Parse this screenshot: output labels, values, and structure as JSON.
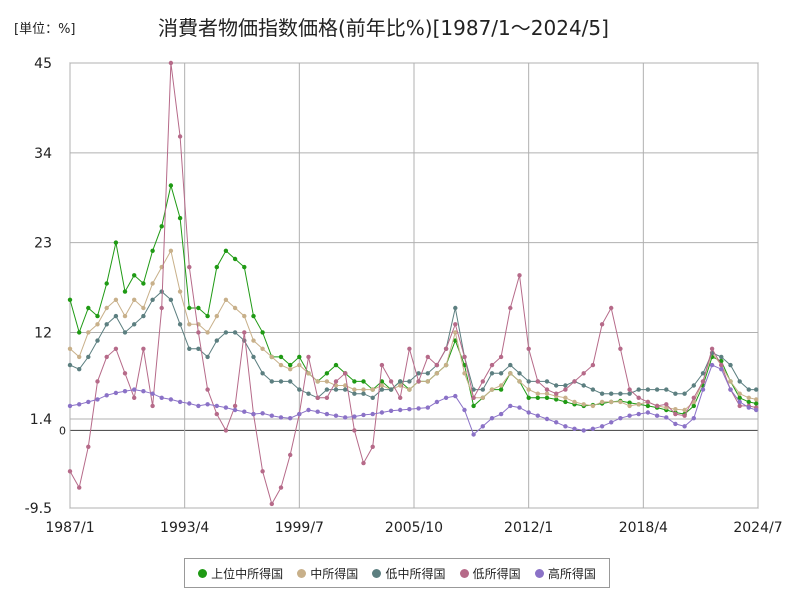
{
  "chart_data": {
    "type": "line",
    "title": "消費者物価指数価格(前年比%)[1987/1～2024/5]",
    "unit_label": "[単位：%]",
    "zero_label": "0",
    "xlabel": "",
    "ylabel": "",
    "xlim": [
      1987.0,
      2024.5
    ],
    "ylim": [
      -9.5,
      45
    ],
    "y_ticks": [
      {
        "value": 45,
        "label": "45"
      },
      {
        "value": 34,
        "label": "34"
      },
      {
        "value": 23,
        "label": "23"
      },
      {
        "value": 12,
        "label": "12"
      },
      {
        "value": 1.4,
        "label": "1.4"
      },
      {
        "value": -9.5,
        "label": "-9.5"
      }
    ],
    "x_ticks": [
      {
        "value": 1987.0,
        "label": "1987/1"
      },
      {
        "value": 1993.25,
        "label": "1993/4"
      },
      {
        "value": 1999.5,
        "label": "1999/7"
      },
      {
        "value": 2005.75,
        "label": "2005/10"
      },
      {
        "value": 2012.0,
        "label": "2012/1"
      },
      {
        "value": 2018.25,
        "label": "2018/4"
      },
      {
        "value": 2024.5,
        "label": "2024/7"
      }
    ],
    "grid": true,
    "legend_position": "bottom",
    "series": [
      {
        "name": "上位中所得国",
        "color": "#1f9a14",
        "x": [
          1987.0,
          1987.5,
          1988.0,
          1988.5,
          1989.0,
          1989.5,
          1990.0,
          1990.5,
          1991.0,
          1991.5,
          1992.0,
          1992.5,
          1993.0,
          1993.5,
          1994.0,
          1994.5,
          1995.0,
          1995.5,
          1996.0,
          1996.5,
          1997.0,
          1997.5,
          1998.0,
          1998.5,
          1999.0,
          1999.5,
          2000.0,
          2000.5,
          2001.0,
          2001.5,
          2002.0,
          2002.5,
          2003.0,
          2003.5,
          2004.0,
          2004.5,
          2005.0,
          2005.5,
          2006.0,
          2006.5,
          2007.0,
          2007.5,
          2008.0,
          2008.5,
          2009.0,
          2009.5,
          2010.0,
          2010.5,
          2011.0,
          2011.5,
          2012.0,
          2012.5,
          2013.0,
          2013.5,
          2014.0,
          2014.5,
          2015.0,
          2015.5,
          2016.0,
          2016.5,
          2017.0,
          2017.5,
          2018.0,
          2018.5,
          2019.0,
          2019.5,
          2020.0,
          2020.5,
          2021.0,
          2021.5,
          2022.0,
          2022.5,
          2023.0,
          2023.5,
          2024.0,
          2024.4
        ],
        "values": [
          16,
          12,
          15,
          14,
          18,
          23,
          17,
          19,
          18,
          22,
          25,
          30,
          26,
          15,
          15,
          14,
          20,
          22,
          21,
          20,
          14,
          12,
          9,
          9,
          8,
          9,
          7,
          6,
          7,
          8,
          7,
          6,
          6,
          5,
          6,
          5,
          6,
          5,
          6,
          6,
          7,
          8,
          11,
          8,
          3,
          4,
          5,
          5,
          7,
          6,
          4,
          4,
          4,
          3.8,
          3.5,
          3.2,
          3.0,
          3.1,
          3.3,
          3.5,
          3.6,
          3.4,
          3.2,
          3.0,
          2.8,
          2.5,
          2.2,
          2.0,
          3.0,
          5.5,
          9.0,
          8.5,
          6.0,
          4.0,
          3.5,
          3.3
        ]
      },
      {
        "name": "中所得国",
        "color": "#c8b08a",
        "x": [
          1987.0,
          1987.5,
          1988.0,
          1988.5,
          1989.0,
          1989.5,
          1990.0,
          1990.5,
          1991.0,
          1991.5,
          1992.0,
          1992.5,
          1993.0,
          1993.5,
          1994.0,
          1994.5,
          1995.0,
          1995.5,
          1996.0,
          1996.5,
          1997.0,
          1997.5,
          1998.0,
          1998.5,
          1999.0,
          1999.5,
          2000.0,
          2000.5,
          2001.0,
          2001.5,
          2002.0,
          2002.5,
          2003.0,
          2003.5,
          2004.0,
          2004.5,
          2005.0,
          2005.5,
          2006.0,
          2006.5,
          2007.0,
          2007.5,
          2008.0,
          2008.5,
          2009.0,
          2009.5,
          2010.0,
          2010.5,
          2011.0,
          2011.5,
          2012.0,
          2012.5,
          2013.0,
          2013.5,
          2014.0,
          2014.5,
          2015.0,
          2015.5,
          2016.0,
          2016.5,
          2017.0,
          2017.5,
          2018.0,
          2018.5,
          2019.0,
          2019.5,
          2020.0,
          2020.5,
          2021.0,
          2021.5,
          2022.0,
          2022.5,
          2023.0,
          2023.5,
          2024.0,
          2024.4
        ],
        "values": [
          10,
          9,
          12,
          13,
          15,
          16,
          14,
          16,
          15,
          18,
          20,
          22,
          17,
          13,
          13,
          12,
          14,
          16,
          15,
          14,
          11,
          10,
          9,
          8,
          7.5,
          8,
          7,
          6,
          6,
          5.5,
          5.5,
          5,
          5,
          5,
          5.5,
          5,
          5.5,
          5,
          6,
          6,
          7,
          8,
          12,
          7,
          4,
          4,
          5,
          5.5,
          7,
          6,
          5,
          4.5,
          4.5,
          4.2,
          4.0,
          3.5,
          3.2,
          3.0,
          3.5,
          3.5,
          3.5,
          3.0,
          3.2,
          3.5,
          3.0,
          2.8,
          2.6,
          2.5,
          3.5,
          6.0,
          9.5,
          8.0,
          6.0,
          4.5,
          4.0,
          3.8
        ]
      },
      {
        "name": "低中所得国",
        "color": "#5c7f80",
        "x": [
          1987.0,
          1987.5,
          1988.0,
          1988.5,
          1989.0,
          1989.5,
          1990.0,
          1990.5,
          1991.0,
          1991.5,
          1992.0,
          1992.5,
          1993.0,
          1993.5,
          1994.0,
          1994.5,
          1995.0,
          1995.5,
          1996.0,
          1996.5,
          1997.0,
          1997.5,
          1998.0,
          1998.5,
          1999.0,
          1999.5,
          2000.0,
          2000.5,
          2001.0,
          2001.5,
          2002.0,
          2002.5,
          2003.0,
          2003.5,
          2004.0,
          2004.5,
          2005.0,
          2005.5,
          2006.0,
          2006.5,
          2007.0,
          2007.5,
          2008.0,
          2008.5,
          2009.0,
          2009.5,
          2010.0,
          2010.5,
          2011.0,
          2011.5,
          2012.0,
          2012.5,
          2013.0,
          2013.5,
          2014.0,
          2014.5,
          2015.0,
          2015.5,
          2016.0,
          2016.5,
          2017.0,
          2017.5,
          2018.0,
          2018.5,
          2019.0,
          2019.5,
          2020.0,
          2020.5,
          2021.0,
          2021.5,
          2022.0,
          2022.5,
          2023.0,
          2023.5,
          2024.0,
          2024.4
        ],
        "values": [
          8,
          7.5,
          9,
          11,
          13,
          14,
          12,
          13,
          14,
          16,
          17,
          16,
          13,
          10,
          10,
          9,
          11,
          12,
          12,
          11,
          9,
          7,
          6,
          6,
          6,
          5,
          4.5,
          4,
          5,
          5,
          5,
          4.5,
          4.5,
          4,
          5,
          5,
          6,
          6,
          7,
          7,
          8,
          10,
          15,
          9,
          5,
          5,
          7,
          7,
          8,
          7,
          6,
          6,
          6,
          5.5,
          5.5,
          6,
          5.5,
          5,
          4.5,
          4.5,
          4.5,
          4.5,
          5,
          5,
          5,
          5,
          4.5,
          4.5,
          5.5,
          7,
          9.5,
          9,
          8,
          6,
          5,
          5
        ]
      },
      {
        "name": "低所得国",
        "color": "#b66a89",
        "x": [
          1987.0,
          1987.5,
          1988.0,
          1988.5,
          1989.0,
          1989.5,
          1990.0,
          1990.5,
          1991.0,
          1991.5,
          1992.0,
          1992.5,
          1993.0,
          1993.5,
          1994.0,
          1994.5,
          1995.0,
          1995.5,
          1996.0,
          1996.5,
          1997.0,
          1997.5,
          1998.0,
          1998.5,
          1999.0,
          1999.5,
          2000.0,
          2000.5,
          2001.0,
          2001.5,
          2002.0,
          2002.5,
          2003.0,
          2003.5,
          2004.0,
          2004.5,
          2005.0,
          2005.5,
          2006.0,
          2006.5,
          2007.0,
          2007.5,
          2008.0,
          2008.5,
          2009.0,
          2009.5,
          2010.0,
          2010.5,
          2011.0,
          2011.5,
          2012.0,
          2012.5,
          2013.0,
          2013.5,
          2014.0,
          2014.5,
          2015.0,
          2015.5,
          2016.0,
          2016.5,
          2017.0,
          2017.5,
          2018.0,
          2018.5,
          2019.0,
          2019.5,
          2020.0,
          2020.5,
          2021.0,
          2021.5,
          2022.0,
          2022.5,
          2023.0,
          2023.5,
          2024.0,
          2024.4
        ],
        "values": [
          -5,
          -7,
          -2,
          6,
          9,
          10,
          7,
          4,
          10,
          3,
          15,
          45,
          36,
          20,
          12,
          5,
          2,
          0,
          3,
          12,
          2,
          -5,
          -9,
          -7,
          -3,
          2,
          9,
          4,
          4,
          6,
          7,
          0,
          -4,
          -2,
          8,
          6,
          4,
          10,
          6,
          9,
          8,
          10,
          13,
          9,
          4,
          6,
          8,
          9,
          15,
          19,
          10,
          6,
          5,
          4.5,
          5,
          6,
          7,
          8,
          13,
          15,
          10,
          5,
          4,
          3.5,
          3,
          3.2,
          2.0,
          1.8,
          4,
          6,
          10,
          8,
          5,
          3,
          3,
          2.8
        ]
      },
      {
        "name": "高所得国",
        "color": "#8b72c7",
        "x": [
          1987.0,
          1987.5,
          1988.0,
          1988.5,
          1989.0,
          1989.5,
          1990.0,
          1990.5,
          1991.0,
          1991.5,
          1992.0,
          1992.5,
          1993.0,
          1993.5,
          1994.0,
          1994.5,
          1995.0,
          1995.5,
          1996.0,
          1996.5,
          1997.0,
          1997.5,
          1998.0,
          1998.5,
          1999.0,
          1999.5,
          2000.0,
          2000.5,
          2001.0,
          2001.5,
          2002.0,
          2002.5,
          2003.0,
          2003.5,
          2004.0,
          2004.5,
          2005.0,
          2005.5,
          2006.0,
          2006.5,
          2007.0,
          2007.5,
          2008.0,
          2008.5,
          2009.0,
          2009.5,
          2010.0,
          2010.5,
          2011.0,
          2011.5,
          2012.0,
          2012.5,
          2013.0,
          2013.5,
          2014.0,
          2014.5,
          2015.0,
          2015.5,
          2016.0,
          2016.5,
          2017.0,
          2017.5,
          2018.0,
          2018.5,
          2019.0,
          2019.5,
          2020.0,
          2020.5,
          2021.0,
          2021.5,
          2022.0,
          2022.5,
          2023.0,
          2023.5,
          2024.0,
          2024.4
        ],
        "values": [
          3,
          3.2,
          3.5,
          3.8,
          4.3,
          4.6,
          4.8,
          5.0,
          4.8,
          4.5,
          4.0,
          3.8,
          3.5,
          3.3,
          3.0,
          3.2,
          3.0,
          2.8,
          2.5,
          2.3,
          2.0,
          2.1,
          1.8,
          1.6,
          1.5,
          2.0,
          2.5,
          2.3,
          2.0,
          1.8,
          1.6,
          1.7,
          1.9,
          2.0,
          2.2,
          2.4,
          2.5,
          2.6,
          2.7,
          2.8,
          3.5,
          4.0,
          4.2,
          2.5,
          -0.5,
          0.5,
          1.5,
          2.0,
          3.0,
          2.8,
          2.2,
          1.8,
          1.4,
          1.0,
          0.5,
          0.2,
          0.0,
          0.2,
          0.5,
          1.0,
          1.5,
          1.8,
          2.0,
          2.2,
          1.8,
          1.6,
          0.8,
          0.5,
          1.5,
          5.0,
          8.0,
          7.5,
          5.0,
          3.5,
          2.8,
          2.5
        ]
      }
    ]
  }
}
